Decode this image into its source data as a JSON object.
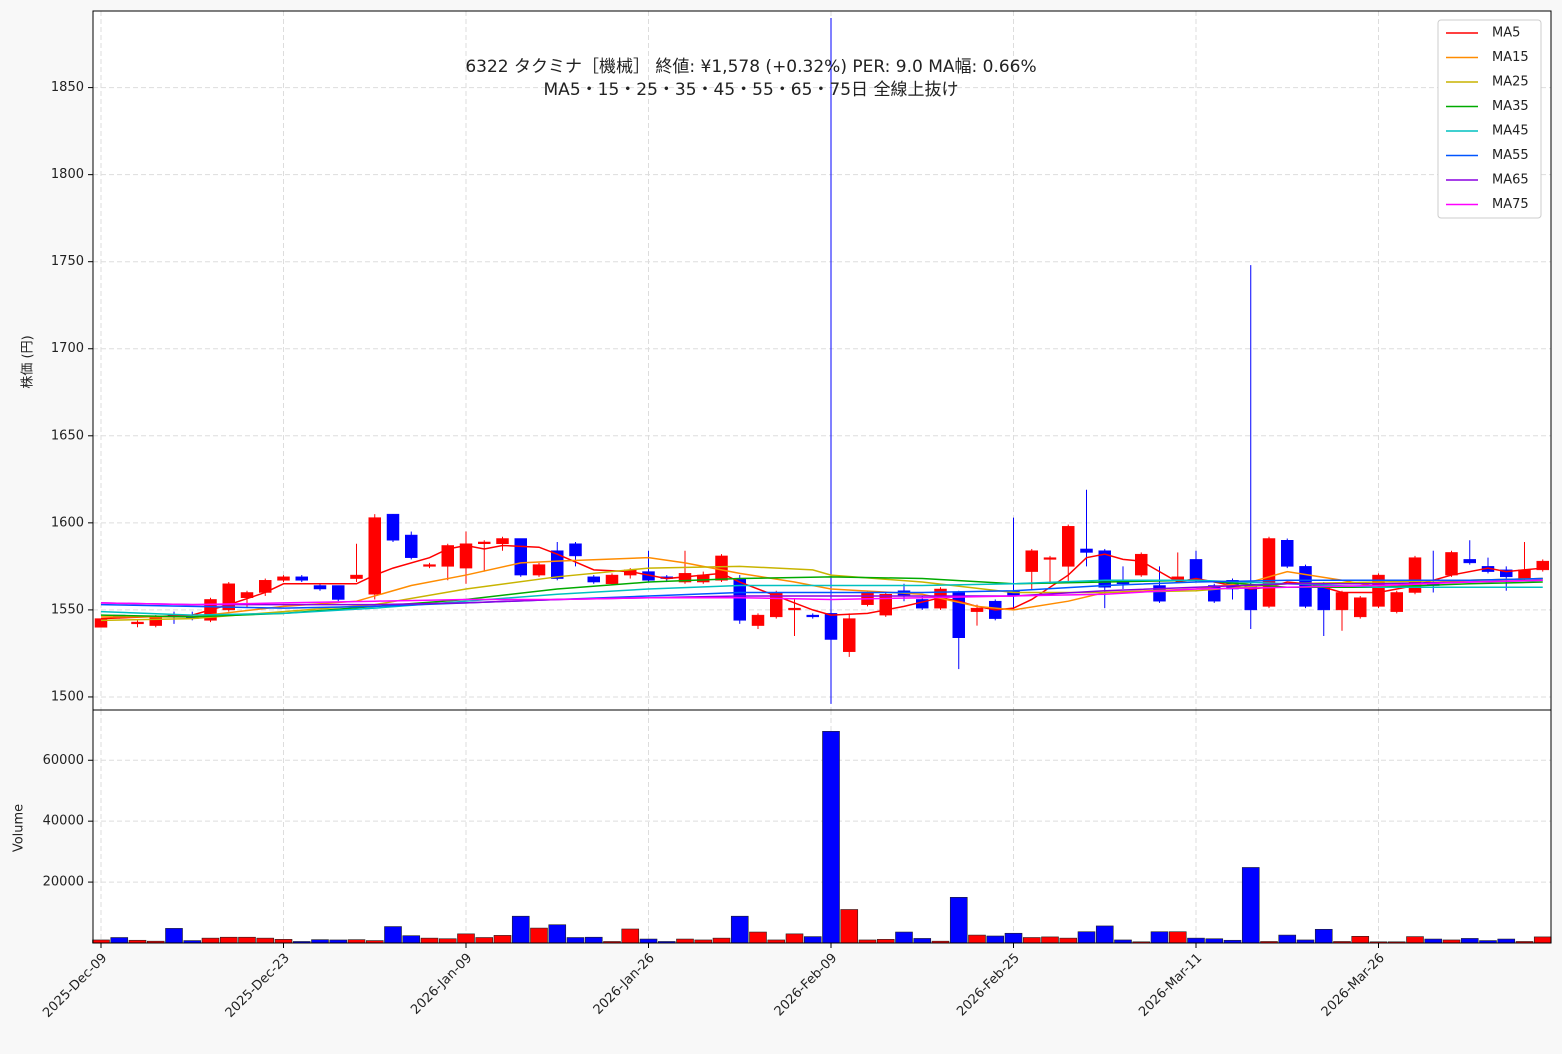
{
  "chart_data": [
    {
      "type": "candlestick",
      "title": "6322  タクミナ［機械］ 終値: ¥1,578 (+0.32%)   PER: 9.0  MA幅: 0.66%",
      "subtitle": "MA5・15・25・35・45・55・65・75日 全線上抜け",
      "ylabel": "株価 (円)",
      "categories": [
        "2025-Dec-09",
        null,
        null,
        null,
        null,
        null,
        null,
        null,
        null,
        null,
        "2025-Dec-23",
        null,
        null,
        null,
        null,
        null,
        null,
        null,
        null,
        null,
        "2026-Jan-09",
        null,
        null,
        null,
        null,
        null,
        null,
        null,
        null,
        null,
        "2026-Jan-26",
        null,
        null,
        null,
        null,
        null,
        null,
        null,
        null,
        null,
        "2026-Feb-09",
        null,
        null,
        null,
        null,
        null,
        null,
        null,
        null,
        null,
        "2026-Feb-25",
        null,
        null,
        null,
        null,
        null,
        null,
        null,
        null,
        null,
        "2026-Mar-11",
        null,
        null,
        null,
        null,
        null,
        null,
        null,
        null,
        null,
        "2026-Mar-26",
        null,
        null,
        null,
        null,
        null,
        null,
        null,
        null,
        null
      ],
      "open": [
        1540,
        1547,
        1542,
        1541,
        1547,
        1546,
        1544,
        1550,
        1557,
        1560,
        1567,
        1569,
        1564,
        1564,
        1568,
        1559,
        1605,
        1593,
        1575,
        1575,
        1574,
        1588,
        1588,
        1591,
        1570,
        1584,
        1588,
        1569,
        1565,
        1570,
        1572,
        1569,
        1566,
        1566,
        1567,
        1568,
        1541,
        1546,
        1550,
        1547,
        1548,
        1526,
        1553,
        1547,
        1561,
        1556,
        1551,
        1560,
        1549,
        1555,
        1561,
        1572,
        1579,
        1575,
        1585,
        1584,
        1567,
        1570,
        1564,
        1567,
        1579,
        1564,
        1567,
        1564,
        1552,
        1590,
        1575,
        1564,
        1550,
        1546,
        1552,
        1549,
        1560,
        1565,
        1570,
        1579,
        1575,
        1573,
        1568,
        1573
      ],
      "high": [
        1545,
        1547,
        1544,
        1547,
        1549,
        1549,
        1557,
        1566,
        1561,
        1568,
        1570,
        1570,
        1565,
        1564,
        1588,
        1605,
        1605,
        1595,
        1577,
        1588,
        1595,
        1590,
        1592,
        1591,
        1577,
        1589,
        1589,
        1570,
        1571,
        1574,
        1584,
        1570,
        1584,
        1572,
        1582,
        1570,
        1548,
        1561,
        1556,
        1548,
        1890,
        1548,
        1561,
        1560,
        1565,
        1558,
        1563,
        1561,
        1553,
        1556,
        1603,
        1585,
        1581,
        1599,
        1619,
        1585,
        1575,
        1583,
        1575,
        1583,
        1584,
        1565,
        1568,
        1748,
        1592,
        1591,
        1576,
        1566,
        1561,
        1558,
        1571,
        1561,
        1581,
        1584,
        1584,
        1590,
        1580,
        1575,
        1589,
        1579
      ],
      "low": [
        1540,
        1545,
        1540,
        1540,
        1542,
        1544,
        1543,
        1549,
        1551,
        1558,
        1566,
        1566,
        1561,
        1555,
        1566,
        1556,
        1589,
        1579,
        1574,
        1567,
        1565,
        1572,
        1584,
        1569,
        1569,
        1567,
        1575,
        1565,
        1564,
        1568,
        1566,
        1566,
        1565,
        1565,
        1566,
        1542,
        1539,
        1545,
        1535,
        1545,
        1496,
        1523,
        1552,
        1546,
        1555,
        1550,
        1550,
        1516,
        1541,
        1544,
        1550,
        1562,
        1565,
        1566,
        1575,
        1551,
        1562,
        1569,
        1554,
        1566,
        1566,
        1554,
        1556,
        1539,
        1551,
        1574,
        1551,
        1535,
        1538,
        1545,
        1551,
        1548,
        1559,
        1560,
        1569,
        1576,
        1571,
        1561,
        1567,
        1572
      ],
      "close": [
        1545,
        1546,
        1543,
        1546,
        1546,
        1545,
        1556,
        1565,
        1560,
        1567,
        1569,
        1567,
        1562,
        1556,
        1570,
        1603,
        1590,
        1580,
        1576,
        1587,
        1588,
        1589,
        1591,
        1570,
        1576,
        1568,
        1581,
        1566,
        1570,
        1573,
        1567,
        1568,
        1571,
        1570,
        1581,
        1544,
        1547,
        1560,
        1551,
        1546,
        1533,
        1545,
        1560,
        1559,
        1558,
        1551,
        1562,
        1534,
        1551,
        1545,
        1558,
        1584,
        1580,
        1598,
        1583,
        1563,
        1565,
        1582,
        1555,
        1569,
        1567,
        1555,
        1562,
        1550,
        1591,
        1575,
        1552,
        1550,
        1560,
        1557,
        1570,
        1560,
        1580,
        1564,
        1583,
        1577,
        1572,
        1569,
        1573,
        1578
      ],
      "up_color": "#ff0000",
      "down_color": "#0000ff",
      "ylim": [
        1492.5,
        1894
      ],
      "yticks": [
        1500,
        1550,
        1600,
        1650,
        1700,
        1750,
        1800,
        1850
      ],
      "grid": true,
      "legend": "upper right",
      "series": [
        {
          "name": "MA5",
          "color": "#ff0000",
          "x": [
            0,
            5,
            6,
            7,
            9,
            10,
            12,
            14,
            15,
            16,
            18,
            19,
            20,
            21,
            22,
            24,
            25,
            27,
            29,
            31,
            33,
            34,
            35,
            37,
            39,
            40,
            42,
            44,
            46,
            47,
            48,
            49,
            50,
            51,
            53,
            54,
            55,
            56,
            57,
            58,
            59,
            60,
            62,
            63,
            64,
            65,
            66,
            67,
            68,
            70,
            71,
            72,
            74,
            76,
            77,
            79
          ],
          "values": [
            1545,
            1547,
            1550,
            1553,
            1560,
            1565,
            1565,
            1565,
            1570,
            1574,
            1580,
            1585,
            1587,
            1585,
            1587,
            1586,
            1582,
            1573,
            1572,
            1568,
            1570,
            1571,
            1566,
            1558,
            1550,
            1547,
            1548,
            1552,
            1557,
            1555,
            1552,
            1550,
            1551,
            1556,
            1570,
            1580,
            1582,
            1579,
            1578,
            1572,
            1566,
            1568,
            1564,
            1562,
            1563,
            1566,
            1565,
            1563,
            1560,
            1560,
            1562,
            1564,
            1570,
            1574,
            1572,
            1574
          ]
        },
        {
          "name": "MA15",
          "color": "#ff8c00",
          "x": [
            0,
            5,
            10,
            14,
            15,
            17,
            20,
            23,
            25,
            30,
            32,
            35,
            38,
            40,
            45,
            48,
            50,
            53,
            55,
            60,
            63,
            65,
            68,
            70,
            75,
            79
          ],
          "values": [
            1546,
            1546,
            1552,
            1555,
            1558,
            1564,
            1570,
            1577,
            1578,
            1580,
            1577,
            1571,
            1566,
            1562,
            1559,
            1552,
            1550,
            1555,
            1560,
            1562,
            1566,
            1572,
            1567,
            1563,
            1567,
            1568
          ]
        },
        {
          "name": "MA25",
          "color": "#c8b400",
          "x": [
            0,
            5,
            10,
            15,
            20,
            25,
            30,
            35,
            39,
            40,
            45,
            50,
            55,
            60,
            65,
            70,
            75,
            79
          ],
          "values": [
            1544,
            1545,
            1549,
            1553,
            1562,
            1569,
            1574,
            1575,
            1573,
            1570,
            1566,
            1560,
            1560,
            1561,
            1565,
            1566,
            1567,
            1568
          ]
        },
        {
          "name": "MA35",
          "color": "#00aa00",
          "x": [
            0,
            5,
            10,
            15,
            20,
            25,
            30,
            35,
            40,
            45,
            50,
            55,
            60,
            65,
            70,
            75,
            79
          ],
          "values": [
            1547,
            1546,
            1548,
            1552,
            1556,
            1562,
            1566,
            1568,
            1569,
            1568,
            1565,
            1566,
            1567,
            1563,
            1563,
            1565,
            1566
          ]
        },
        {
          "name": "MA45",
          "color": "#00c0c0",
          "x": [
            0,
            5,
            10,
            15,
            20,
            25,
            30,
            35,
            40,
            45,
            50,
            55,
            60,
            65,
            70,
            75,
            79
          ],
          "values": [
            1549,
            1547,
            1548,
            1551,
            1555,
            1559,
            1562,
            1564,
            1564,
            1564,
            1565,
            1567,
            1567,
            1565,
            1563,
            1563,
            1563
          ]
        },
        {
          "name": "MA55",
          "color": "#0055ff",
          "x": [
            0,
            5,
            10,
            15,
            20,
            25,
            30,
            35,
            40,
            45,
            50,
            55,
            60,
            65,
            70,
            75,
            79
          ],
          "values": [
            1553,
            1552,
            1551,
            1552,
            1554,
            1556,
            1558,
            1560,
            1560,
            1560,
            1561,
            1564,
            1566,
            1567,
            1567,
            1567,
            1568
          ]
        },
        {
          "name": "MA65",
          "color": "#8a00e0",
          "x": [
            0,
            5,
            10,
            15,
            20,
            25,
            30,
            35,
            40,
            45,
            50,
            55,
            60,
            65,
            70,
            75,
            79
          ],
          "values": [
            1554,
            1553,
            1553,
            1553,
            1554,
            1556,
            1557,
            1558,
            1558,
            1558,
            1558,
            1561,
            1563,
            1565,
            1565,
            1566,
            1567
          ]
        },
        {
          "name": "MA75",
          "color": "#ff00ff",
          "x": [
            0,
            5,
            10,
            15,
            20,
            25,
            30,
            35,
            40,
            45,
            50,
            55,
            60,
            65,
            70,
            75,
            79
          ],
          "values": [
            1554,
            1553,
            1554,
            1555,
            1556,
            1556,
            1557,
            1557,
            1556,
            1557,
            1558,
            1559,
            1562,
            1563,
            1564,
            1566,
            1567
          ]
        }
      ]
    },
    {
      "type": "bar",
      "ylabel": "Volume",
      "values": [
        1000,
        1800,
        900,
        600,
        4800,
        800,
        1600,
        1900,
        1900,
        1600,
        1200,
        500,
        1100,
        1000,
        1100,
        800,
        5400,
        2400,
        1600,
        1400,
        3000,
        1800,
        2500,
        8800,
        4900,
        6000,
        1800,
        1900,
        500,
        4600,
        1300,
        500,
        1300,
        1000,
        1600,
        8800,
        3600,
        1000,
        3000,
        2100,
        69500,
        11000,
        1000,
        1200,
        3600,
        1500,
        600,
        15000,
        2600,
        2300,
        3200,
        1800,
        2000,
        1600,
        3700,
        5600,
        1000,
        400,
        3700,
        3700,
        1600,
        1400,
        900,
        24800,
        500,
        2600,
        1000,
        4500,
        500,
        2200,
        400,
        400,
        2100,
        1300,
        1000,
        1500,
        800,
        1300,
        500,
        2000
      ],
      "ylim": [
        0,
        76500
      ],
      "yticks": [
        20000,
        40000,
        60000
      ],
      "grid": true
    }
  ]
}
